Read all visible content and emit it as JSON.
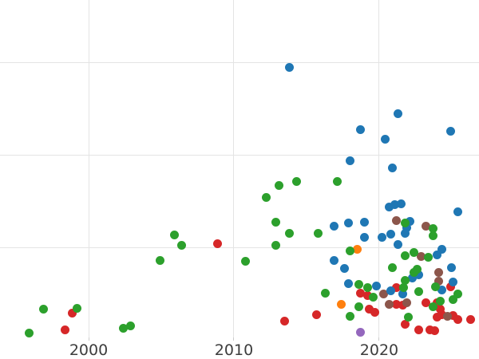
{
  "chart_data": {
    "type": "scatter",
    "title": "",
    "xlabel": "",
    "ylabel": "",
    "grid": true,
    "legend": "none",
    "xlim": [
      1993.9,
      2026.87
    ],
    "ylim": [
      0,
      3.681
    ],
    "x_ticks": [
      {
        "value": 2000,
        "label": "2000"
      },
      {
        "value": 2010,
        "label": "2010"
      },
      {
        "value": 2020,
        "label": "2020"
      }
    ],
    "y_gridline_values": [
      1,
      2,
      3
    ],
    "grid_color": "#e4e4e4",
    "tick_label_color": "#3d3d3d",
    "marker_diameter_px": 11,
    "series": [
      {
        "name": "red-category",
        "color": "#d62728",
        "points": [
          [
            1998.4,
            0.12
          ],
          [
            1998.9,
            0.3
          ],
          [
            2008.9,
            1.05
          ],
          [
            2013.5,
            0.21
          ],
          [
            2015.7,
            0.28
          ],
          [
            2018.7,
            0.51
          ],
          [
            2019.2,
            0.49
          ],
          [
            2019.3,
            0.34
          ],
          [
            2019.7,
            0.31
          ],
          [
            2021.2,
            0.57
          ],
          [
            2021.2,
            0.39
          ],
          [
            2021.6,
            0.38
          ],
          [
            2021.8,
            0.18
          ],
          [
            2022.7,
            0.12
          ],
          [
            2023.2,
            0.41
          ],
          [
            2023.5,
            0.12
          ],
          [
            2023.8,
            0.11
          ],
          [
            2024.0,
            0.25
          ],
          [
            2024.0,
            0.41
          ],
          [
            2024.2,
            0.34
          ],
          [
            2024.3,
            0.28
          ],
          [
            2024.9,
            0.58
          ],
          [
            2025.1,
            0.27
          ],
          [
            2025.4,
            0.23
          ],
          [
            2026.3,
            0.23
          ]
        ]
      },
      {
        "name": "brown-category",
        "color": "#8c564b",
        "points": [
          [
            2021.2,
            1.3
          ],
          [
            2023.2,
            1.24
          ],
          [
            2022.9,
            0.91
          ],
          [
            2024.1,
            0.74
          ],
          [
            2024.1,
            0.64
          ],
          [
            2020.3,
            0.5
          ],
          [
            2020.7,
            0.39
          ],
          [
            2021.9,
            0.41
          ],
          [
            2024.7,
            0.26
          ]
        ]
      },
      {
        "name": "purple-category",
        "color": "#9467bd",
        "points": [
          [
            2018.7,
            0.09
          ]
        ]
      },
      {
        "name": "orange-category",
        "color": "#ff7f0e",
        "points": [
          [
            2018.5,
            0.99
          ],
          [
            2017.4,
            0.39
          ]
        ]
      },
      {
        "name": "blue-category",
        "color": "#1f77b4",
        "points": [
          [
            2013.8,
            2.95
          ],
          [
            2021.3,
            2.45
          ],
          [
            2018.7,
            2.28
          ],
          [
            2020.4,
            2.18
          ],
          [
            2024.9,
            2.26
          ],
          [
            2018.0,
            1.94
          ],
          [
            2020.9,
            1.87
          ],
          [
            2016.9,
            1.24
          ],
          [
            2017.9,
            1.27
          ],
          [
            2019.0,
            1.28
          ],
          [
            2019.0,
            1.12
          ],
          [
            2020.7,
            1.44
          ],
          [
            2021.1,
            1.47
          ],
          [
            2021.5,
            1.48
          ],
          [
            2025.4,
            1.39
          ],
          [
            2022.1,
            1.29
          ],
          [
            2021.9,
            1.22
          ],
          [
            2020.2,
            1.12
          ],
          [
            2020.8,
            1.15
          ],
          [
            2021.8,
            1.16
          ],
          [
            2021.3,
            1.04
          ],
          [
            2024.3,
            0.99
          ],
          [
            2024.0,
            0.93
          ],
          [
            2016.9,
            0.87
          ],
          [
            2017.6,
            0.78
          ],
          [
            2017.9,
            0.62
          ],
          [
            2025.0,
            0.79
          ],
          [
            2025.1,
            0.63
          ],
          [
            2019.8,
            0.59
          ],
          [
            2020.8,
            0.54
          ],
          [
            2021.6,
            0.5
          ],
          [
            2022.3,
            0.68
          ],
          [
            2022.7,
            0.71
          ],
          [
            2024.3,
            0.55
          ]
        ]
      },
      {
        "name": "green-category",
        "color": "#2ca02c",
        "points": [
          [
            1995.9,
            0.08
          ],
          [
            1996.9,
            0.34
          ],
          [
            1999.2,
            0.35
          ],
          [
            2002.4,
            0.13
          ],
          [
            2002.9,
            0.16
          ],
          [
            2004.9,
            0.87
          ],
          [
            2005.9,
            1.14
          ],
          [
            2006.4,
            1.03
          ],
          [
            2010.8,
            0.86
          ],
          [
            2012.2,
            1.55
          ],
          [
            2012.9,
            1.28
          ],
          [
            2012.9,
            1.03
          ],
          [
            2013.1,
            1.68
          ],
          [
            2013.8,
            1.16
          ],
          [
            2014.3,
            1.72
          ],
          [
            2015.8,
            1.16
          ],
          [
            2016.3,
            0.51
          ],
          [
            2017.1,
            1.72
          ],
          [
            2018.0,
            0.97
          ],
          [
            2018.0,
            0.26
          ],
          [
            2018.6,
            0.61
          ],
          [
            2018.6,
            0.37
          ],
          [
            2019.2,
            0.57
          ],
          [
            2019.6,
            0.47
          ],
          [
            2020.9,
            0.79
          ],
          [
            2021.8,
            0.65
          ],
          [
            2021.7,
            0.57
          ],
          [
            2021.8,
            1.27
          ],
          [
            2021.8,
            0.92
          ],
          [
            2022.0,
            0.25
          ],
          [
            2022.4,
            0.95
          ],
          [
            2022.4,
            0.74
          ],
          [
            2022.6,
            0.77
          ],
          [
            2022.7,
            0.53
          ],
          [
            2023.4,
            0.9
          ],
          [
            2023.7,
            1.21
          ],
          [
            2023.7,
            1.13
          ],
          [
            2023.7,
            0.37
          ],
          [
            2023.9,
            0.58
          ],
          [
            2024.2,
            0.43
          ],
          [
            2025.1,
            0.44
          ],
          [
            2025.4,
            0.5
          ]
        ]
      }
    ]
  }
}
